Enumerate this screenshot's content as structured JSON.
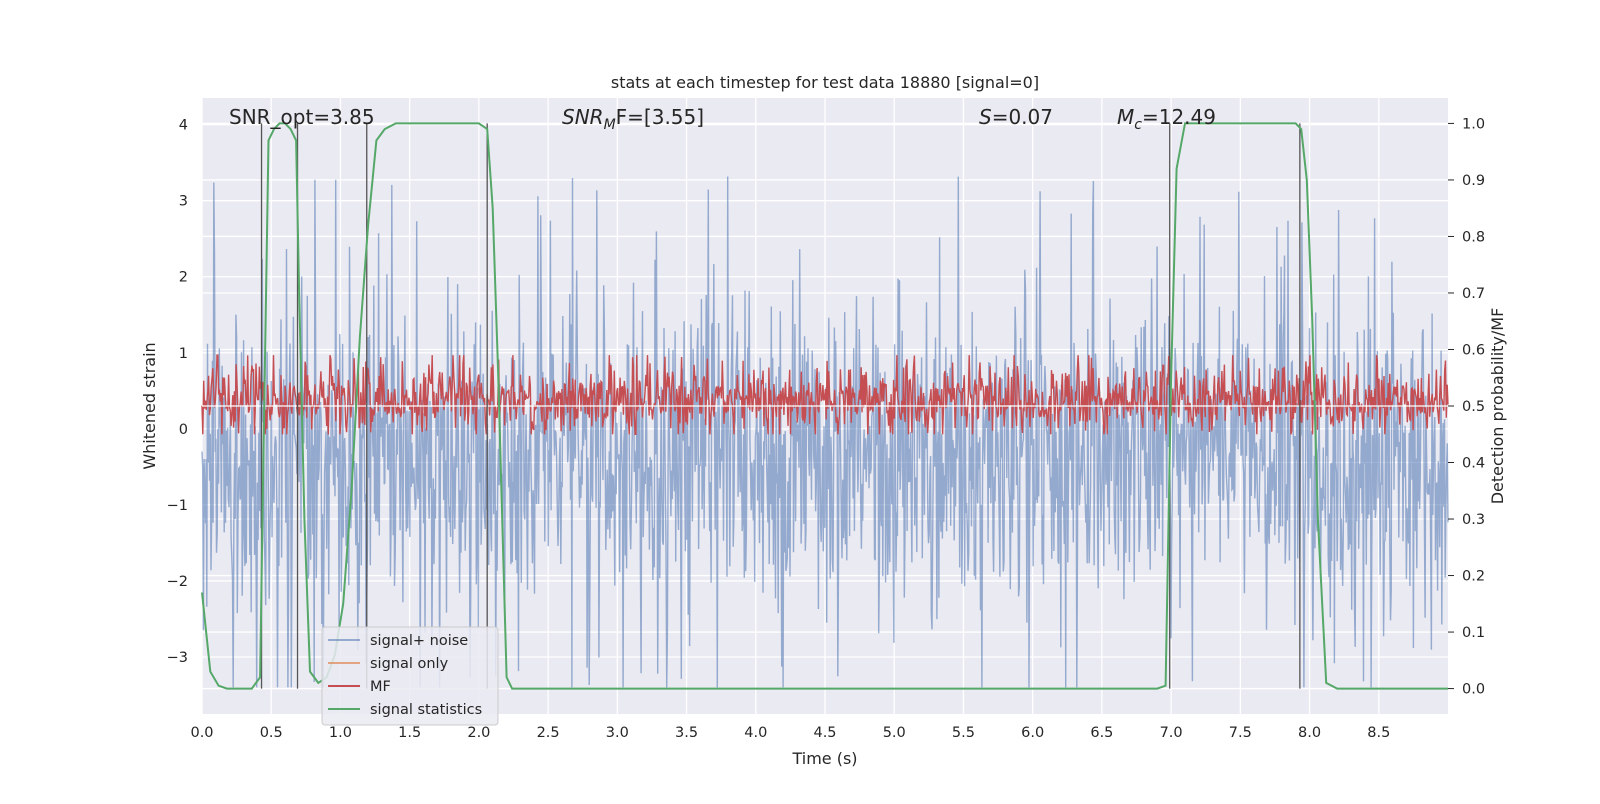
{
  "chart_data": {
    "type": "line",
    "title": "stats at each timestep for test data 18880 [signal=0]",
    "xlabel": "Time (s)",
    "ylabel_left": "Whitened strain",
    "ylabel_right": "Detection probability/MF",
    "xlim": [
      0.0,
      9.0
    ],
    "ylim_left": [
      -3.75,
      4.35
    ],
    "ylim_right": [
      -0.045,
      1.045
    ],
    "x_ticks": [
      "0.0",
      "0.5",
      "1.0",
      "1.5",
      "2.0",
      "2.5",
      "3.0",
      "3.5",
      "4.0",
      "4.5",
      "5.0",
      "5.5",
      "6.0",
      "6.5",
      "7.0",
      "7.5",
      "8.0",
      "8.5"
    ],
    "y_ticks_left": [
      "−3",
      "−2",
      "−1",
      "0",
      "1",
      "2",
      "3",
      "4"
    ],
    "y_ticks_right": [
      "0.0",
      "0.1",
      "0.2",
      "0.3",
      "0.4",
      "0.5",
      "0.6",
      "0.7",
      "0.8",
      "0.9",
      "1.0"
    ],
    "grid": true,
    "legend_position": "lower-left",
    "annotations": {
      "snr_opt": "SNR_opt=3.85",
      "snr_mf_base": "SNR",
      "snr_mf_sub": "M",
      "snr_mf_rest": "F=[3.55]",
      "s_base": "S",
      "s_rest": "=0.07",
      "mc_base": "M",
      "mc_sub": "c",
      "mc_rest": "=12.49"
    },
    "series": [
      {
        "name": "signal+ noise",
        "color": "#4c72b0",
        "axis": "left",
        "style": "dense noise, mean ~-0.4, range ~[-3.4, 3.4]",
        "mean": -0.4,
        "std": 0.95,
        "min": -3.4,
        "max": 3.4
      },
      {
        "name": "signal only",
        "color": "#dd8452",
        "axis": "left",
        "values": []
      },
      {
        "name": "MF",
        "color": "#c44e52",
        "axis": "right",
        "style": "dense noise around 0.5, range ~[0.45, 0.59]",
        "mean": 0.51,
        "min": 0.45,
        "max": 0.59
      },
      {
        "name": "signal statistics",
        "color": "#55a868",
        "axis": "right",
        "x": [
          0.0,
          0.06,
          0.12,
          0.18,
          0.24,
          0.3,
          0.36,
          0.42,
          0.44,
          0.48,
          0.52,
          0.56,
          0.6,
          0.64,
          0.68,
          0.7,
          0.74,
          0.78,
          0.84,
          0.9,
          0.96,
          1.02,
          1.08,
          1.14,
          1.2,
          1.26,
          1.32,
          1.4,
          1.6,
          1.8,
          2.0,
          2.06,
          2.1,
          2.14,
          2.2,
          2.24,
          2.3,
          2.5,
          3.0,
          4.0,
          5.0,
          6.0,
          6.5,
          6.9,
          6.96,
          7.0,
          7.04,
          7.1,
          7.3,
          7.6,
          7.9,
          7.94,
          7.98,
          8.02,
          8.06,
          8.12,
          8.2,
          8.5,
          9.0
        ],
        "y": [
          0.17,
          0.03,
          0.005,
          0.0,
          0.0,
          0.0,
          0.0,
          0.02,
          0.35,
          0.97,
          0.99,
          1.0,
          1.0,
          0.99,
          0.97,
          0.72,
          0.3,
          0.03,
          0.01,
          0.02,
          0.06,
          0.15,
          0.35,
          0.62,
          0.82,
          0.97,
          0.99,
          1.0,
          1.0,
          1.0,
          1.0,
          0.99,
          0.85,
          0.55,
          0.02,
          0.0,
          0.0,
          0.0,
          0.0,
          0.0,
          0.0,
          0.0,
          0.0,
          0.0,
          0.005,
          0.55,
          0.92,
          1.0,
          1.0,
          1.0,
          1.0,
          0.99,
          0.9,
          0.65,
          0.3,
          0.01,
          0.0,
          0.0,
          0.0
        ]
      }
    ],
    "vertical_markers": [
      0.43,
      0.69,
      1.19,
      2.06,
      6.99,
      7.93
    ]
  }
}
